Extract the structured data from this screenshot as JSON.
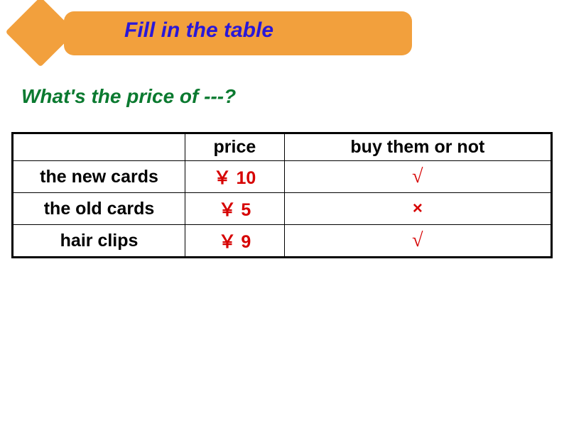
{
  "banner": {
    "title": "Fill in the table",
    "background_color": "#f2a03d",
    "title_color": "#2a18d8"
  },
  "question": {
    "text": "What's the price of ---?",
    "color": "#0b7a30"
  },
  "table": {
    "headers": {
      "item": "",
      "price": "price",
      "buy": "buy them or not"
    },
    "rows": [
      {
        "item": "the new  cards",
        "price": "￥ 10",
        "buy": "√"
      },
      {
        "item": "the old cards",
        "price": "￥ 5",
        "buy": "×"
      },
      {
        "item": "hair clips",
        "price": "￥ 9",
        "buy": "√"
      }
    ],
    "price_color": "#d60000",
    "buy_color": "#d60000"
  }
}
